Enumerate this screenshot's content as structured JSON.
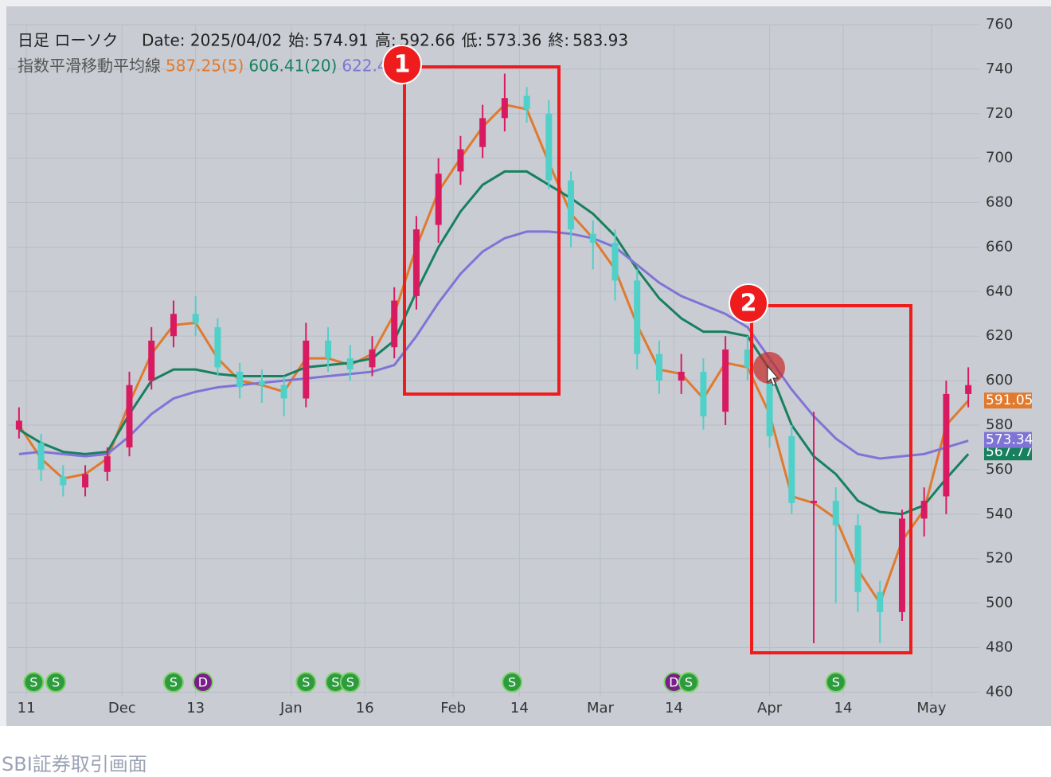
{
  "chart_data": {
    "type": "candlestick",
    "title": "日足 ローソク",
    "date_label": "Date: 2025/04/02",
    "ohlc_info": [
      {
        "label": "始:",
        "value": 574.91
      },
      {
        "label": "高:",
        "value": 592.66
      },
      {
        "label": "低:",
        "value": 573.36
      },
      {
        "label": "終:",
        "value": 583.93
      }
    ],
    "indicator_label": "指数平滑移動平均線",
    "up_color": "#d81b60",
    "down_color": "#4fd0c9",
    "x": [
      1,
      4,
      7,
      10,
      13,
      16,
      19,
      22,
      25,
      28,
      31,
      34,
      37,
      40,
      43,
      46,
      49,
      52,
      55,
      58,
      61,
      64,
      67,
      70,
      73,
      76,
      79,
      82,
      85,
      88,
      91,
      94,
      97,
      100,
      103,
      106,
      109,
      112,
      115,
      118,
      121,
      124,
      127,
      130
    ],
    "candles": {
      "open": [
        578,
        572,
        557,
        552,
        559,
        570,
        600,
        620,
        630,
        624,
        604,
        600,
        598,
        592,
        618,
        610,
        606,
        615,
        638,
        670,
        694,
        705,
        718,
        728,
        720,
        690,
        666,
        662,
        645,
        612,
        600,
        604,
        586,
        614,
        606,
        575,
        545,
        546,
        535,
        505,
        496,
        538,
        548,
        594
      ],
      "high": [
        588,
        576,
        562,
        562,
        570,
        604,
        624,
        636,
        638,
        628,
        608,
        605,
        602,
        626,
        624,
        616,
        620,
        642,
        674,
        700,
        710,
        724,
        738,
        732,
        726,
        694,
        672,
        668,
        650,
        618,
        612,
        610,
        620,
        620,
        610,
        580,
        586,
        552,
        540,
        510,
        542,
        552,
        600,
        606
      ],
      "low": [
        574,
        555,
        548,
        548,
        555,
        566,
        596,
        615,
        620,
        602,
        592,
        590,
        584,
        588,
        604,
        600,
        602,
        610,
        632,
        662,
        688,
        700,
        712,
        716,
        686,
        660,
        650,
        636,
        605,
        594,
        594,
        578,
        580,
        600,
        570,
        540,
        482,
        500,
        496,
        482,
        492,
        530,
        540,
        588
      ],
      "close": [
        582,
        560,
        553,
        558,
        566,
        598,
        618,
        630,
        626,
        606,
        597,
        598,
        592,
        618,
        610,
        605,
        614,
        636,
        668,
        693,
        704,
        718,
        727,
        722,
        690,
        668,
        662,
        645,
        612,
        600,
        604,
        584,
        614,
        606,
        575,
        545,
        546,
        535,
        505,
        496,
        538,
        546,
        594,
        598
      ]
    },
    "series": [
      {
        "name": "587.25(5)",
        "color": "#e07a2e",
        "last_value": 591.05,
        "values": [
          580,
          565,
          556,
          558,
          565,
          590,
          612,
          625,
          626,
          610,
          600,
          598,
          595,
          610,
          610,
          607,
          612,
          630,
          660,
          685,
          700,
          714,
          724,
          722,
          698,
          675,
          664,
          650,
          625,
          605,
          603,
          592,
          608,
          606,
          585,
          548,
          545,
          538,
          515,
          500,
          528,
          542,
          580,
          591
        ]
      },
      {
        "name": "606.41(20)",
        "color": "#17805f",
        "last_value": 567.77,
        "values": [
          578,
          572,
          568,
          567,
          568,
          585,
          600,
          605,
          605,
          603,
          602,
          602,
          602,
          606,
          607,
          608,
          610,
          618,
          640,
          660,
          676,
          688,
          694,
          694,
          688,
          682,
          675,
          665,
          650,
          637,
          628,
          622,
          622,
          620,
          605,
          580,
          566,
          558,
          546,
          541,
          540,
          544,
          556,
          567
        ]
      },
      {
        "name": "622.4",
        "color": "#7f74d6",
        "last_value": 573.34,
        "values": [
          567,
          568,
          567,
          566,
          567,
          575,
          585,
          592,
          595,
          597,
          598,
          599,
          600,
          601,
          602,
          603,
          604,
          607,
          620,
          635,
          648,
          658,
          664,
          667,
          667,
          666,
          664,
          660,
          652,
          644,
          638,
          634,
          630,
          624,
          610,
          596,
          584,
          574,
          567,
          565,
          566,
          567,
          570,
          573
        ]
      }
    ],
    "xlim": [
      -0.5,
      131.5
    ],
    "xticks": [
      {
        "value": 2,
        "label": "11"
      },
      {
        "value": 15,
        "label": "Dec"
      },
      {
        "value": 25,
        "label": "13"
      },
      {
        "value": 38,
        "label": "Jan"
      },
      {
        "value": 48,
        "label": "16"
      },
      {
        "value": 60,
        "label": "Feb"
      },
      {
        "value": 69,
        "label": "14"
      },
      {
        "value": 80,
        "label": "Mar"
      },
      {
        "value": 90,
        "label": "14"
      },
      {
        "value": 103,
        "label": "Apr"
      },
      {
        "value": 113,
        "label": "14"
      },
      {
        "value": 125,
        "label": "May"
      }
    ],
    "ylim": [
      458,
      767.5
    ],
    "yticks": [
      460,
      480,
      500,
      520,
      540,
      560,
      580,
      600,
      620,
      640,
      660,
      680,
      700,
      720,
      740,
      760
    ],
    "grid": true,
    "events": [
      {
        "x": 3,
        "label": "S"
      },
      {
        "x": 6,
        "label": "S"
      },
      {
        "x": 22,
        "label": "S"
      },
      {
        "x": 26,
        "label": "D"
      },
      {
        "x": 40,
        "label": "S"
      },
      {
        "x": 44,
        "label": "S"
      },
      {
        "x": 46,
        "label": "S"
      },
      {
        "x": 68,
        "label": "S"
      },
      {
        "x": 90,
        "label": "D"
      },
      {
        "x": 92,
        "label": "S"
      },
      {
        "x": 112,
        "label": "S"
      }
    ],
    "annotations": [
      {
        "label": "1"
      },
      {
        "label": "2"
      }
    ]
  },
  "caption": "SBI証券取引画面"
}
